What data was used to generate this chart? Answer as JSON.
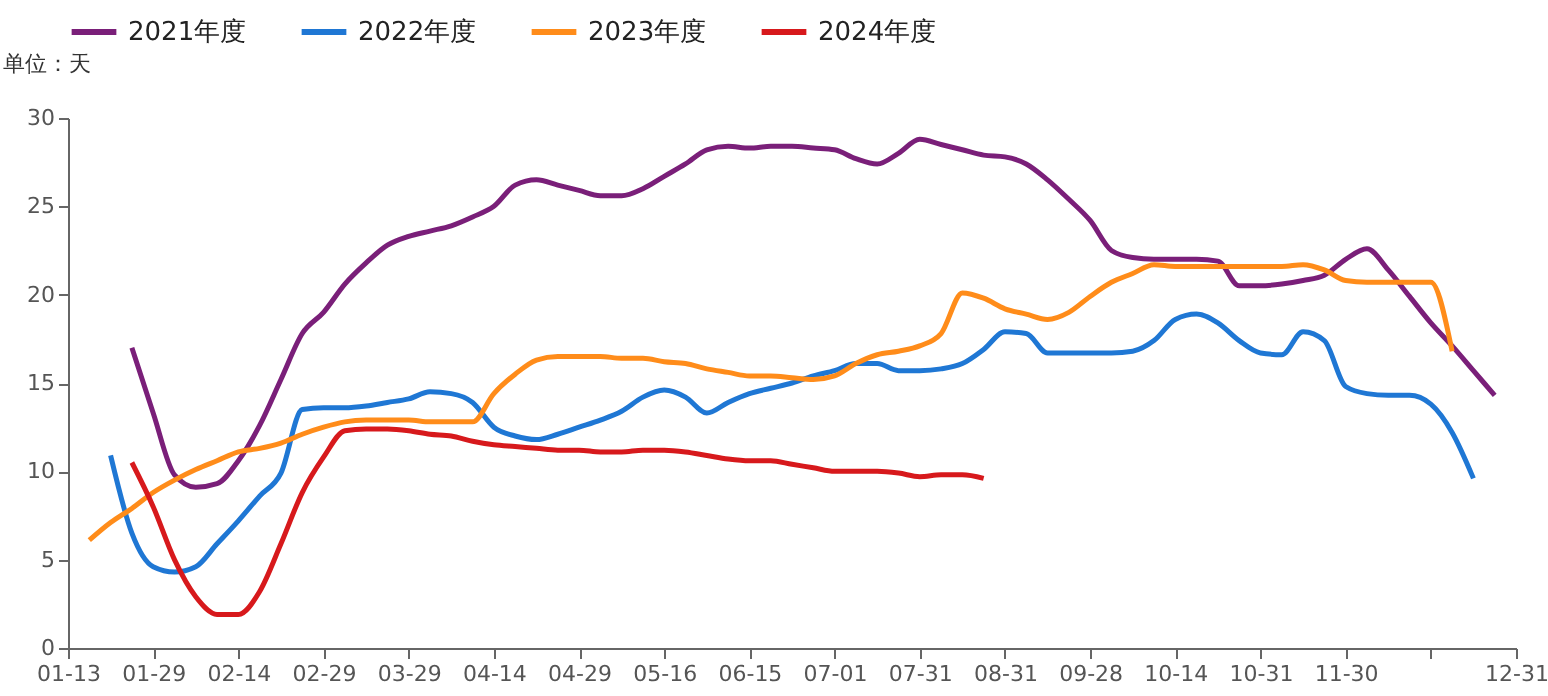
{
  "chart_data": {
    "type": "line",
    "ylabel": "单位：天",
    "categories": [
      "01-13",
      null,
      null,
      null,
      "01-29",
      null,
      null,
      null,
      "02-14",
      null,
      null,
      null,
      "02-29",
      null,
      null,
      null,
      "03-29",
      null,
      null,
      null,
      "04-14",
      null,
      null,
      null,
      "04-29",
      null,
      null,
      null,
      "05-16",
      null,
      null,
      null,
      "06-15",
      null,
      null,
      null,
      "07-01",
      null,
      null,
      null,
      "07-31",
      null,
      null,
      null,
      "08-31",
      null,
      null,
      null,
      "09-28",
      null,
      null,
      null,
      "10-14",
      null,
      null,
      null,
      "10-31",
      null,
      null,
      null,
      "11-30",
      null,
      null,
      null,
      null,
      null,
      null,
      null,
      "12-31"
    ],
    "series": [
      {
        "name": "2021年度",
        "color": "#7a1f79",
        "values": [
          null,
          null,
          null,
          17.0,
          13.3,
          9.8,
          9.1,
          9.3,
          10.6,
          12.6,
          15.2,
          17.8,
          19.0,
          20.6,
          21.8,
          22.8,
          23.3,
          23.6,
          23.9,
          24.4,
          25.0,
          26.2,
          26.5,
          26.2,
          25.9,
          25.6,
          25.6,
          26.0,
          26.7,
          27.4,
          28.2,
          28.4,
          28.3,
          28.4,
          28.4,
          28.3,
          28.2,
          27.7,
          27.4,
          28.0,
          28.8,
          28.5,
          28.2,
          27.9,
          27.8,
          27.4,
          26.5,
          25.4,
          24.2,
          22.5,
          22.1,
          22.0,
          22.0,
          22.0,
          21.9,
          20.5,
          20.5,
          20.6,
          20.8,
          21.1,
          22.0,
          22.6,
          21.4,
          19.9,
          18.4,
          17.1,
          15.7,
          14.3,
          null
        ]
      },
      {
        "name": "2022年度",
        "color": "#1f77d4",
        "values": [
          null,
          null,
          10.9,
          6.5,
          4.6,
          4.3,
          4.6,
          5.9,
          7.2,
          8.6,
          9.9,
          13.5,
          13.6,
          13.6,
          13.7,
          13.9,
          14.1,
          14.5,
          14.4,
          13.9,
          12.5,
          12.0,
          11.8,
          12.1,
          12.5,
          12.9,
          13.4,
          14.2,
          14.6,
          14.2,
          13.3,
          13.9,
          14.4,
          14.7,
          15.0,
          15.4,
          15.7,
          16.1,
          16.1,
          15.7,
          15.7,
          15.8,
          16.1,
          16.9,
          17.9,
          17.8,
          16.7,
          16.7,
          16.7,
          16.7,
          16.8,
          17.4,
          18.6,
          18.9,
          18.4,
          17.4,
          16.7,
          16.6,
          17.9,
          17.4,
          14.8,
          14.4,
          14.3,
          14.3,
          13.8,
          12.2,
          9.6,
          null,
          null
        ]
      },
      {
        "name": "2023年度",
        "color": "#ff8c1a",
        "values": [
          null,
          6.1,
          7.1,
          7.9,
          8.8,
          9.5,
          10.1,
          10.6,
          11.1,
          11.3,
          11.6,
          12.1,
          12.5,
          12.8,
          12.9,
          12.9,
          12.9,
          12.8,
          12.8,
          12.8,
          14.4,
          15.5,
          16.3,
          16.5,
          16.5,
          16.5,
          16.4,
          16.4,
          16.2,
          16.1,
          15.8,
          15.6,
          15.4,
          15.4,
          15.3,
          15.2,
          15.4,
          16.1,
          16.6,
          16.8,
          17.1,
          17.8,
          20.1,
          19.8,
          19.2,
          18.9,
          18.6,
          19.0,
          19.9,
          20.7,
          21.2,
          21.7,
          21.6,
          21.6,
          21.6,
          21.6,
          21.6,
          21.6,
          21.7,
          21.4,
          20.8,
          20.7,
          20.7,
          20.7,
          20.7,
          16.8,
          null,
          null,
          null
        ]
      },
      {
        "name": "2024年度",
        "color": "#d7191c",
        "values": [
          null,
          null,
          null,
          10.5,
          8.0,
          5.0,
          2.9,
          1.9,
          1.9,
          3.2,
          5.9,
          8.8,
          10.8,
          12.3,
          12.4,
          12.4,
          12.3,
          12.1,
          12.0,
          11.7,
          11.5,
          11.4,
          11.3,
          11.2,
          11.2,
          11.1,
          11.1,
          11.2,
          11.2,
          11.1,
          10.9,
          10.7,
          10.6,
          10.6,
          10.4,
          10.2,
          10.0,
          10.0,
          10.0,
          9.9,
          9.7,
          9.8,
          9.8,
          9.6,
          null,
          null,
          null,
          null,
          null,
          null,
          null,
          null,
          null,
          null,
          null,
          null,
          null,
          null,
          null,
          null,
          null,
          null,
          null,
          null,
          null,
          null,
          null,
          null,
          null
        ]
      }
    ],
    "ylim": [
      0,
      30
    ],
    "yticks": [
      0,
      5,
      10,
      15,
      20,
      25,
      30
    ],
    "grid": false,
    "legend": "top",
    "line_style": "solid",
    "marker": "none"
  }
}
